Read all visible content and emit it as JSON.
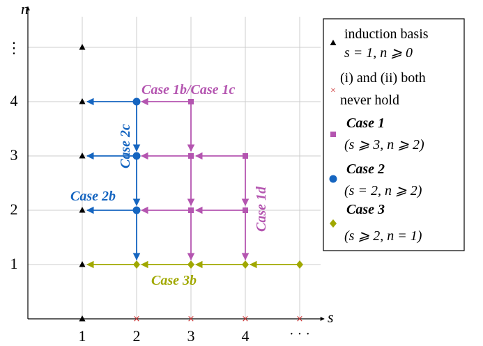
{
  "axes": {
    "x_label": "s",
    "y_label": "n",
    "x_ticks": [
      "1",
      "2",
      "3",
      "4",
      "· · ·"
    ],
    "y_ticks": [
      "1",
      "2",
      "3",
      "4",
      "⋮"
    ]
  },
  "colors": {
    "basis": "#000000",
    "never": "#cc3333",
    "case1": "#b455b0",
    "case2": "#1565c0",
    "case3": "#a0a800",
    "grid": "#cccccc"
  },
  "annotations": {
    "case_1b_1c": "Case  1b/Case  1c",
    "case_2c": "Case  2c",
    "case_2b": "Case  2b",
    "case_1d": "Case  1d",
    "case_3b": "Case  3b"
  },
  "legend": {
    "basis_line1": "induction basis",
    "basis_line2": "s = 1, n ⩾ 0",
    "never_line1": "(i) and (ii) both",
    "never_line2": "never hold",
    "case1_title": "Case  1",
    "case1_cond": "(s ⩾ 3, n ⩾ 2)",
    "case2_title": "Case  2",
    "case2_cond": "(s = 2, n ⩾ 2)",
    "case3_title": "Case  3",
    "case3_cond": "(s ⩾ 2, n = 1)"
  },
  "points": {
    "basis": [
      [
        1,
        0
      ],
      [
        1,
        1
      ],
      [
        1,
        2
      ],
      [
        1,
        3
      ],
      [
        1,
        4
      ],
      [
        1,
        5
      ]
    ],
    "never": [
      [
        2,
        0
      ],
      [
        3,
        0
      ],
      [
        4,
        0
      ],
      [
        5,
        0
      ]
    ],
    "case1": [
      [
        3,
        2
      ],
      [
        4,
        2
      ],
      [
        3,
        3
      ],
      [
        4,
        3
      ],
      [
        3,
        4
      ]
    ],
    "case2": [
      [
        2,
        2
      ],
      [
        2,
        3
      ],
      [
        2,
        4
      ]
    ],
    "case3": [
      [
        2,
        1
      ],
      [
        3,
        1
      ],
      [
        4,
        1
      ],
      [
        5,
        1
      ]
    ]
  },
  "arrows": {
    "case1": [
      [
        [
          3,
          4
        ],
        [
          2,
          4
        ]
      ],
      [
        [
          3,
          4
        ],
        [
          3,
          3
        ]
      ],
      [
        [
          4,
          3
        ],
        [
          3,
          3
        ]
      ],
      [
        [
          3,
          3
        ],
        [
          2,
          3
        ]
      ],
      [
        [
          4,
          3
        ],
        [
          4,
          2
        ]
      ],
      [
        [
          3,
          3
        ],
        [
          3,
          2
        ]
      ],
      [
        [
          4,
          2
        ],
        [
          3,
          2
        ]
      ],
      [
        [
          3,
          2
        ],
        [
          2,
          2
        ]
      ],
      [
        [
          4,
          2
        ],
        [
          4,
          1
        ]
      ],
      [
        [
          3,
          2
        ],
        [
          3,
          1
        ]
      ]
    ],
    "case2": [
      [
        [
          2,
          4
        ],
        [
          1,
          4
        ]
      ],
      [
        [
          2,
          4
        ],
        [
          2,
          3
        ]
      ],
      [
        [
          2,
          3
        ],
        [
          1,
          3
        ]
      ],
      [
        [
          2,
          3
        ],
        [
          2,
          2
        ]
      ],
      [
        [
          2,
          2
        ],
        [
          1,
          2
        ]
      ],
      [
        [
          2,
          2
        ],
        [
          2,
          1
        ]
      ]
    ],
    "case3": [
      [
        [
          5,
          1
        ],
        [
          4,
          1
        ]
      ],
      [
        [
          4,
          1
        ],
        [
          3,
          1
        ]
      ],
      [
        [
          3,
          1
        ],
        [
          2,
          1
        ]
      ],
      [
        [
          2,
          1
        ],
        [
          1,
          1
        ]
      ]
    ],
    "axis": [
      [
        [
          0,
          0
        ],
        [
          5.45,
          0
        ]
      ],
      [
        [
          0,
          0
        ],
        [
          0,
          5.75
        ]
      ]
    ]
  }
}
